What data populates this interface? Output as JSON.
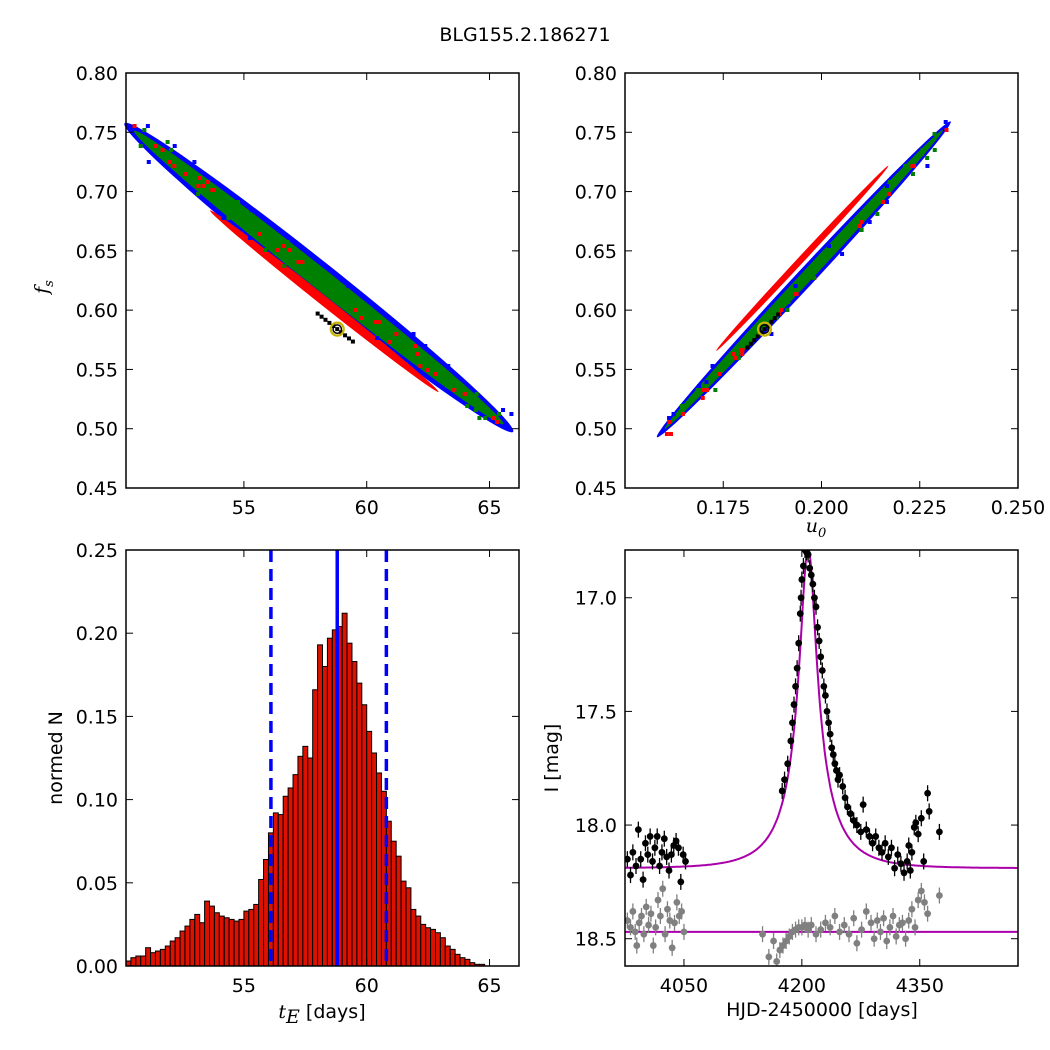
{
  "figure": {
    "title": "BLG155.2.186271"
  },
  "colors": {
    "contour_3sigma": "#0000ff",
    "contour_2sigma": "#008000",
    "contour_1sigma": "#ff0000",
    "mcmc_points": "#000000",
    "best_fit_marker_edge": "#c8b400",
    "hist_bar": "#dd1100",
    "hist_edge": "#000000",
    "median_line": "#0000ff",
    "model_line": "#aa00aa",
    "data_primary": "#000000",
    "data_secondary": "#808080"
  },
  "chart_data": [
    {
      "panel": "fs-vs-tE",
      "type": "heatmap",
      "title": "",
      "xlabel": "",
      "ylabel": "f_s",
      "ylabel_main": "f",
      "ylabel_sub": "s",
      "xlim": [
        50.2,
        66.2
      ],
      "ylim": [
        0.45,
        0.8
      ],
      "xticks": [
        "55",
        "60",
        "65"
      ],
      "xtick_values": [
        55,
        60,
        65
      ],
      "yticks": [
        "0.45",
        "0.50",
        "0.55",
        "0.60",
        "0.65",
        "0.70",
        "0.75",
        "0.80"
      ],
      "ytick_values": [
        0.45,
        0.5,
        0.55,
        0.6,
        0.65,
        0.7,
        0.75,
        0.8
      ],
      "region": {
        "x_start": 50.3,
        "y_start": 0.755,
        "x_end": 65.8,
        "y_end": 0.5,
        "sigma_halfwidths": [
          0.017,
          0.011,
          0.005
        ]
      },
      "best_fit": {
        "x": 58.8,
        "y": 0.584
      }
    },
    {
      "panel": "fs-vs-u0",
      "type": "heatmap",
      "title": "",
      "xlabel": "u_0",
      "xlabel_main": "u",
      "xlabel_sub": "0",
      "ylabel": "",
      "xlim": [
        0.15,
        0.25
      ],
      "ylim": [
        0.45,
        0.8
      ],
      "xticks": [
        "0.175",
        "0.200",
        "0.225",
        "0.250"
      ],
      "xtick_values": [
        0.175,
        0.2,
        0.225,
        0.25
      ],
      "yticks": [
        "0.45",
        "0.50",
        "0.55",
        "0.60",
        "0.65",
        "0.70",
        "0.75",
        "0.80"
      ],
      "ytick_values": [
        0.45,
        0.5,
        0.55,
        0.6,
        0.65,
        0.7,
        0.75,
        0.8
      ],
      "region": {
        "x_start": 0.159,
        "y_start": 0.496,
        "x_end": 0.232,
        "y_end": 0.756,
        "sigma_halfwidths": [
          0.011,
          0.007,
          0.004
        ]
      },
      "best_fit": {
        "x": 0.1855,
        "y": 0.584
      }
    },
    {
      "panel": "tE-histogram",
      "type": "bar",
      "title": "",
      "xlabel": "t_E [days]",
      "xlabel_main": "t",
      "xlabel_sub": "E",
      "xlabel_rest": " [days]",
      "ylabel": "normed N",
      "xlim": [
        50.2,
        66.2
      ],
      "ylim": [
        0.0,
        0.25
      ],
      "xticks": [
        "55",
        "60",
        "65"
      ],
      "xtick_values": [
        55,
        60,
        65
      ],
      "yticks": [
        "0.00",
        "0.05",
        "0.10",
        "0.15",
        "0.20",
        "0.25"
      ],
      "ytick_values": [
        0.0,
        0.05,
        0.1,
        0.15,
        0.2,
        0.25
      ],
      "bin_start": 50.2,
      "bin_width": 0.2,
      "values": [
        0.003,
        0.005,
        0.006,
        0.006,
        0.011,
        0.008,
        0.009,
        0.01,
        0.012,
        0.015,
        0.017,
        0.021,
        0.024,
        0.028,
        0.031,
        0.026,
        0.039,
        0.036,
        0.032,
        0.03,
        0.029,
        0.028,
        0.027,
        0.028,
        0.033,
        0.034,
        0.037,
        0.052,
        0.064,
        0.08,
        0.092,
        0.091,
        0.102,
        0.107,
        0.115,
        0.126,
        0.132,
        0.125,
        0.166,
        0.193,
        0.18,
        0.197,
        0.202,
        0.204,
        0.212,
        0.194,
        0.183,
        0.17,
        0.157,
        0.141,
        0.128,
        0.116,
        0.105,
        0.087,
        0.075,
        0.066,
        0.051,
        0.047,
        0.034,
        0.03,
        0.025,
        0.023,
        0.022,
        0.02,
        0.017,
        0.012,
        0.01,
        0.007,
        0.005,
        0.004,
        0.002,
        0.001,
        0.001
      ],
      "median": 58.8,
      "interval": [
        56.1,
        60.8
      ]
    },
    {
      "panel": "light-curve",
      "type": "scatter",
      "title": "",
      "xlabel": "HJD-2450000 [days]",
      "ylabel": "I [mag]",
      "xlim": [
        3975,
        4475
      ],
      "ylim": [
        18.62,
        16.79
      ],
      "y_inverted": true,
      "xticks": [
        "4050",
        "4200",
        "4350"
      ],
      "xtick_values": [
        4050,
        4200,
        4350
      ],
      "yticks": [
        "17.0",
        "17.5",
        "18.0",
        "18.5"
      ],
      "ytick_values": [
        17.0,
        17.5,
        18.0,
        18.5
      ],
      "model_primary": {
        "baseline": 18.19,
        "peak": 16.78,
        "t0": 4208,
        "tE": 58.8,
        "u0": 0.1855
      },
      "model_secondary": {
        "baseline": 18.47
      },
      "primary_data": [
        [
          3978,
          18.15
        ],
        [
          3982,
          18.22
        ],
        [
          3985,
          18.12
        ],
        [
          3989,
          18.18
        ],
        [
          3992,
          18.02
        ],
        [
          3995,
          18.15
        ],
        [
          3998,
          18.24
        ],
        [
          4001,
          18.08
        ],
        [
          4004,
          18.13
        ],
        [
          4007,
          18.05
        ],
        [
          4010,
          18.16
        ],
        [
          4013,
          18.1
        ],
        [
          4016,
          18.05
        ],
        [
          4019,
          18.18
        ],
        [
          4022,
          18.12
        ],
        [
          4025,
          18.06
        ],
        [
          4028,
          18.14
        ],
        [
          4031,
          18.2
        ],
        [
          4034,
          18.13
        ],
        [
          4037,
          18.09
        ],
        [
          4040,
          18.07
        ],
        [
          4043,
          18.1
        ],
        [
          4046,
          18.25
        ],
        [
          4049,
          18.13
        ],
        [
          4052,
          18.16
        ],
        [
          4200,
          16.92
        ],
        [
          4202,
          16.86
        ],
        [
          4204,
          16.79
        ],
        [
          4206,
          16.8
        ],
        [
          4208,
          16.81
        ],
        [
          4210,
          16.87
        ],
        [
          4212,
          16.9
        ],
        [
          4214,
          16.94
        ],
        [
          4216,
          17.0
        ],
        [
          4218,
          17.04
        ],
        [
          4220,
          17.13
        ],
        [
          4222,
          17.19
        ],
        [
          4224,
          17.26
        ],
        [
          4226,
          17.32
        ],
        [
          4228,
          17.39
        ],
        [
          4230,
          17.43
        ],
        [
          4232,
          17.5
        ],
        [
          4234,
          17.55
        ],
        [
          4236,
          17.6
        ],
        [
          4238,
          17.66
        ],
        [
          4240,
          17.69
        ],
        [
          4242,
          17.73
        ],
        [
          4244,
          17.76
        ],
        [
          4246,
          17.8
        ],
        [
          4248,
          17.78
        ],
        [
          4175,
          17.85
        ],
        [
          4178,
          17.8
        ],
        [
          4182,
          17.73
        ],
        [
          4186,
          17.63
        ],
        [
          4188,
          17.55
        ],
        [
          4190,
          17.47
        ],
        [
          4192,
          17.39
        ],
        [
          4194,
          17.31
        ],
        [
          4196,
          17.2
        ],
        [
          4198,
          17.07
        ],
        [
          4199,
          17.0
        ],
        [
          4252,
          17.83
        ],
        [
          4255,
          17.88
        ],
        [
          4258,
          17.92
        ],
        [
          4262,
          17.95
        ],
        [
          4266,
          17.98
        ],
        [
          4270,
          18.0
        ],
        [
          4275,
          18.03
        ],
        [
          4278,
          17.91
        ],
        [
          4282,
          18.02
        ],
        [
          4286,
          18.05
        ],
        [
          4290,
          18.08
        ],
        [
          4294,
          18.05
        ],
        [
          4298,
          18.1
        ],
        [
          4302,
          18.12
        ],
        [
          4306,
          18.08
        ],
        [
          4310,
          18.14
        ],
        [
          4314,
          18.1
        ],
        [
          4318,
          18.19
        ],
        [
          4322,
          18.13
        ],
        [
          4326,
          18.17
        ],
        [
          4330,
          18.21
        ],
        [
          4334,
          18.16
        ],
        [
          4336,
          18.09
        ],
        [
          4338,
          18.2
        ],
        [
          4340,
          18.12
        ],
        [
          4343,
          18.01
        ],
        [
          4345,
          17.99
        ],
        [
          4348,
          18.04
        ],
        [
          4352,
          17.97
        ],
        [
          4355,
          18.16
        ],
        [
          4360,
          17.86
        ],
        [
          4362,
          17.94
        ],
        [
          4375,
          18.03
        ]
      ],
      "secondary_data": [
        [
          3978,
          18.42
        ],
        [
          3982,
          18.45
        ],
        [
          3985,
          18.38
        ],
        [
          3988,
          18.47
        ],
        [
          3990,
          18.53
        ],
        [
          3993,
          18.43
        ],
        [
          3996,
          18.4
        ],
        [
          3999,
          18.48
        ],
        [
          4002,
          18.36
        ],
        [
          4005,
          18.44
        ],
        [
          4008,
          18.39
        ],
        [
          4011,
          18.53
        ],
        [
          4014,
          18.45
        ],
        [
          4017,
          18.33
        ],
        [
          4020,
          18.4
        ],
        [
          4023,
          18.28
        ],
        [
          4026,
          18.48
        ],
        [
          4029,
          18.37
        ],
        [
          4032,
          18.42
        ],
        [
          4035,
          18.54
        ],
        [
          4038,
          18.43
        ],
        [
          4041,
          18.34
        ],
        [
          4044,
          18.4
        ],
        [
          4047,
          18.38
        ],
        [
          4050,
          18.47
        ],
        [
          4150,
          18.48
        ],
        [
          4158,
          18.58
        ],
        [
          4164,
          18.51
        ],
        [
          4168,
          18.6
        ],
        [
          4172,
          18.55
        ],
        [
          4176,
          18.53
        ],
        [
          4180,
          18.51
        ],
        [
          4184,
          18.49
        ],
        [
          4188,
          18.47
        ],
        [
          4192,
          18.46
        ],
        [
          4196,
          18.45
        ],
        [
          4200,
          18.45
        ],
        [
          4204,
          18.44
        ],
        [
          4208,
          18.46
        ],
        [
          4212,
          18.44
        ],
        [
          4218,
          18.48
        ],
        [
          4224,
          18.46
        ],
        [
          4230,
          18.43
        ],
        [
          4236,
          18.45
        ],
        [
          4242,
          18.4
        ],
        [
          4248,
          18.47
        ],
        [
          4254,
          18.44
        ],
        [
          4260,
          18.48
        ],
        [
          4266,
          18.41
        ],
        [
          4270,
          18.52
        ],
        [
          4276,
          18.46
        ],
        [
          4282,
          18.38
        ],
        [
          4288,
          18.43
        ],
        [
          4292,
          18.5
        ],
        [
          4296,
          18.42
        ],
        [
          4300,
          18.47
        ],
        [
          4304,
          18.41
        ],
        [
          4308,
          18.51
        ],
        [
          4312,
          18.45
        ],
        [
          4316,
          18.4
        ],
        [
          4320,
          18.49
        ],
        [
          4324,
          18.44
        ],
        [
          4328,
          18.43
        ],
        [
          4332,
          18.5
        ],
        [
          4336,
          18.42
        ],
        [
          4340,
          18.37
        ],
        [
          4344,
          18.45
        ],
        [
          4348,
          18.33
        ],
        [
          4352,
          18.29
        ],
        [
          4356,
          18.34
        ],
        [
          4360,
          18.39
        ],
        [
          4375,
          18.31
        ]
      ]
    }
  ]
}
